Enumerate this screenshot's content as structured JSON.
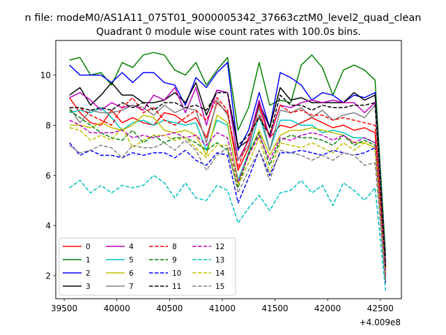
{
  "chart_data": {
    "type": "line",
    "suptitle": "n file: modeM0/AS1A11_075T01_9000005342_37663cztM0_level2_quad_clean",
    "title": "Quadrant 0 module wise count rates with 100.0s bins.",
    "xlabel": "",
    "ylabel": "",
    "offset_text": "+4.009e8",
    "xlim": [
      39420,
      42700
    ],
    "ylim": [
      1.08,
      11.38
    ],
    "xticks": [
      39500,
      40000,
      40500,
      41000,
      41500,
      42000,
      42500
    ],
    "xtick_labels": [
      "39500",
      "40000",
      "40500",
      "41000",
      "41500",
      "42000",
      "42500"
    ],
    "yticks": [
      2,
      4,
      6,
      8,
      10
    ],
    "ytick_labels": [
      "2",
      "4",
      "6",
      "8",
      "10"
    ],
    "grid": false,
    "legend_position": "lower-left",
    "x": [
      39550,
      39650,
      39750,
      39850,
      39950,
      40050,
      40150,
      40250,
      40350,
      40450,
      40550,
      40650,
      40750,
      40850,
      40950,
      41050,
      41150,
      41250,
      41350,
      41450,
      41550,
      41650,
      41750,
      41850,
      41950,
      42050,
      42150,
      42250,
      42350,
      42450,
      42550
    ],
    "series": [
      {
        "name": "0",
        "color": "#ff0000",
        "dash": "solid",
        "values": [
          9.1,
          8.5,
          8.1,
          8.0,
          8.6,
          8.1,
          8.3,
          8.1,
          8.0,
          8.5,
          8.4,
          8.1,
          8.3,
          7.5,
          8.9,
          8.5,
          6.2,
          7.1,
          8.8,
          7.5,
          8.0,
          7.9,
          8.1,
          8.3,
          8.1,
          7.9,
          8.0,
          7.8,
          7.9,
          7.7,
          2.0
        ]
      },
      {
        "name": "1",
        "color": "#008000",
        "dash": "solid",
        "values": [
          10.6,
          10.7,
          10.0,
          10.1,
          9.6,
          10.5,
          10.3,
          10.8,
          10.9,
          10.8,
          10.2,
          10.0,
          10.5,
          9.6,
          10.2,
          10.7,
          7.8,
          8.7,
          10.5,
          8.8,
          9.0,
          8.9,
          10.4,
          10.8,
          10.3,
          9.2,
          10.2,
          10.4,
          10.2,
          9.8,
          2.8
        ]
      },
      {
        "name": "2",
        "color": "#0000ff",
        "dash": "solid",
        "values": [
          10.4,
          10.0,
          10.0,
          10.0,
          9.7,
          10.1,
          9.7,
          10.1,
          10.1,
          9.7,
          9.6,
          8.8,
          9.9,
          9.5,
          10.1,
          10.5,
          7.0,
          7.8,
          9.3,
          7.9,
          10.1,
          9.9,
          9.6,
          9.0,
          9.3,
          9.2,
          8.9,
          9.2,
          9.1,
          9.3,
          2.5
        ]
      },
      {
        "name": "3",
        "color": "#000000",
        "dash": "solid",
        "values": [
          9.2,
          9.5,
          8.8,
          9.2,
          9.7,
          9.2,
          9.2,
          8.9,
          8.9,
          9.0,
          9.3,
          8.9,
          9.7,
          8.4,
          9.4,
          9.3,
          7.1,
          7.4,
          8.9,
          7.9,
          9.5,
          9.0,
          9.1,
          8.9,
          8.9,
          8.9,
          8.9,
          9.3,
          9.0,
          9.2,
          2.4
        ]
      },
      {
        "name": "4",
        "color": "#bf00bf",
        "dash": "solid",
        "values": [
          9.1,
          9.3,
          9.0,
          8.6,
          8.9,
          8.7,
          8.8,
          8.6,
          9.2,
          9.0,
          9.5,
          8.5,
          9.5,
          8.0,
          9.4,
          9.3,
          6.6,
          7.4,
          9.0,
          7.5,
          8.8,
          8.7,
          8.9,
          9.0,
          8.9,
          9.0,
          8.9,
          8.9,
          8.5,
          8.9,
          2.3
        ]
      },
      {
        "name": "5",
        "color": "#00bfbf",
        "dash": "solid",
        "values": [
          8.5,
          8.6,
          8.5,
          8.7,
          8.3,
          7.8,
          8.1,
          8.2,
          8.0,
          8.2,
          8.1,
          8.0,
          8.1,
          7.0,
          8.2,
          8.0,
          5.8,
          6.9,
          8.4,
          7.0,
          8.2,
          8.2,
          8.0,
          8.0,
          7.7,
          7.8,
          7.7,
          7.5,
          7.5,
          7.3,
          1.9
        ]
      },
      {
        "name": "6",
        "color": "#bfbf00",
        "dash": "solid",
        "values": [
          8.0,
          8.0,
          7.9,
          8.1,
          7.9,
          7.8,
          8.0,
          8.4,
          8.3,
          7.8,
          7.7,
          7.8,
          7.6,
          6.8,
          8.4,
          8.1,
          5.7,
          6.8,
          7.8,
          6.8,
          7.6,
          7.8,
          7.8,
          7.9,
          7.8,
          7.7,
          7.6,
          7.3,
          7.3,
          7.1,
          1.8
        ]
      },
      {
        "name": "7",
        "color": "#808080",
        "dash": "solid",
        "values": [
          8.7,
          8.1,
          8.6,
          8.5,
          8.5,
          8.6,
          8.8,
          8.7,
          8.4,
          8.8,
          8.5,
          8.7,
          8.6,
          7.3,
          9.0,
          8.4,
          6.6,
          7.2,
          8.7,
          7.0,
          8.6,
          8.5,
          8.7,
          8.3,
          8.6,
          8.2,
          8.4,
          8.5,
          8.3,
          8.8,
          2.2
        ]
      },
      {
        "name": "8",
        "color": "#ff0000",
        "dash": "dashed",
        "values": [
          8.7,
          8.7,
          8.4,
          8.2,
          8.0,
          8.7,
          9.1,
          8.5,
          8.7,
          8.2,
          8.0,
          8.3,
          8.6,
          8.2,
          9.1,
          8.6,
          6.3,
          7.5,
          8.4,
          7.6,
          8.8,
          8.5,
          8.6,
          8.4,
          8.4,
          8.2,
          8.3,
          8.2,
          8.1,
          8.0,
          2.1
        ]
      },
      {
        "name": "9",
        "color": "#008000",
        "dash": "dashed",
        "values": [
          8.6,
          8.3,
          8.0,
          7.7,
          7.5,
          7.4,
          7.8,
          7.3,
          7.6,
          7.3,
          7.5,
          7.5,
          7.3,
          7.0,
          7.3,
          7.0,
          5.5,
          6.9,
          7.7,
          6.4,
          7.4,
          7.6,
          7.5,
          7.5,
          7.4,
          7.2,
          7.6,
          7.2,
          7.4,
          7.2,
          1.9
        ]
      },
      {
        "name": "10",
        "color": "#0000ff",
        "dash": "dashed",
        "values": [
          7.3,
          6.8,
          7.0,
          6.8,
          6.8,
          6.7,
          6.9,
          6.8,
          6.9,
          6.9,
          6.7,
          7.0,
          6.6,
          6.4,
          6.9,
          6.8,
          4.9,
          5.9,
          7.0,
          6.0,
          6.9,
          6.9,
          7.0,
          6.9,
          6.8,
          7.0,
          6.9,
          6.8,
          6.9,
          7.1,
          1.7
        ]
      },
      {
        "name": "11",
        "color": "#000000",
        "dash": "dashed",
        "values": [
          8.7,
          8.7,
          8.6,
          8.7,
          8.6,
          8.9,
          8.7,
          8.9,
          8.6,
          8.9,
          8.9,
          8.7,
          8.8,
          8.6,
          9.3,
          9.3,
          7.2,
          7.6,
          8.3,
          7.6,
          9.2,
          8.8,
          8.8,
          8.6,
          8.8,
          8.7,
          8.7,
          8.8,
          8.8,
          8.9,
          2.3
        ]
      },
      {
        "name": "12",
        "color": "#bf00bf",
        "dash": "dashed",
        "values": [
          8.2,
          8.0,
          7.7,
          7.7,
          7.7,
          7.8,
          7.5,
          7.6,
          7.5,
          7.6,
          7.7,
          7.5,
          7.6,
          7.2,
          7.7,
          7.5,
          5.7,
          6.8,
          7.6,
          6.6,
          7.5,
          7.4,
          7.6,
          7.7,
          7.6,
          7.4,
          7.6,
          7.3,
          7.5,
          7.3,
          1.9
        ]
      },
      {
        "name": "13",
        "color": "#00bfbf",
        "dash": "dashed",
        "values": [
          5.5,
          5.8,
          5.3,
          5.6,
          5.3,
          5.6,
          5.5,
          5.6,
          6.0,
          5.7,
          5.1,
          5.7,
          5.1,
          5.0,
          5.6,
          5.4,
          4.1,
          4.7,
          5.2,
          4.6,
          5.3,
          5.4,
          5.8,
          5.3,
          5.6,
          4.8,
          5.7,
          5.4,
          5.0,
          5.5,
          1.4
        ]
      },
      {
        "name": "14",
        "color": "#bfbf00",
        "dash": "dashed",
        "values": [
          7.9,
          7.8,
          7.4,
          7.6,
          7.4,
          7.9,
          7.1,
          7.4,
          7.6,
          7.6,
          7.4,
          7.5,
          7.1,
          6.7,
          7.2,
          7.2,
          5.6,
          6.5,
          7.5,
          6.1,
          7.3,
          7.2,
          7.1,
          7.3,
          7.1,
          6.9,
          7.3,
          7.0,
          7.3,
          7.1,
          1.8
        ]
      },
      {
        "name": "15",
        "color": "#808080",
        "dash": "dashed",
        "values": [
          7.2,
          6.9,
          7.0,
          7.2,
          7.1,
          6.7,
          7.2,
          7.1,
          7.1,
          7.3,
          7.0,
          7.4,
          7.0,
          6.2,
          6.8,
          7.1,
          5.3,
          6.2,
          7.0,
          5.8,
          7.0,
          6.9,
          6.8,
          6.6,
          6.8,
          6.6,
          6.9,
          6.8,
          6.4,
          6.5,
          1.7
        ]
      }
    ]
  }
}
